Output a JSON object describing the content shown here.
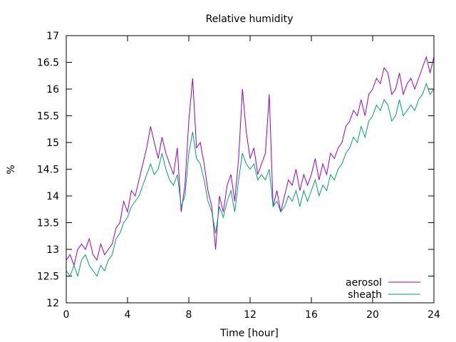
{
  "chart_data": {
    "type": "line",
    "title": "Relative humidity",
    "xlabel": "Time [hour]",
    "ylabel": "%",
    "xlim": [
      0,
      24
    ],
    "ylim": [
      12,
      17
    ],
    "xticks": [
      0,
      4,
      8,
      12,
      16,
      20,
      24
    ],
    "yticks": [
      12,
      12.5,
      13,
      13.5,
      14,
      14.5,
      15,
      15.5,
      16,
      16.5,
      17
    ],
    "grid": false,
    "legend_position": "bottom-right",
    "series": [
      {
        "name": "aerosol",
        "color": "#9400d3",
        "x": [
          0,
          0.25,
          0.5,
          0.75,
          1,
          1.25,
          1.5,
          1.75,
          2,
          2.25,
          2.5,
          2.75,
          3,
          3.25,
          3.5,
          3.75,
          4,
          4.25,
          4.5,
          4.75,
          5,
          5.25,
          5.5,
          5.75,
          6,
          6.25,
          6.5,
          6.75,
          7,
          7.25,
          7.5,
          7.75,
          8,
          8.25,
          8.5,
          8.75,
          9,
          9.25,
          9.5,
          9.75,
          10,
          10.25,
          10.5,
          10.75,
          11,
          11.25,
          11.5,
          11.75,
          12,
          12.25,
          12.5,
          12.75,
          13,
          13.25,
          13.5,
          13.75,
          14,
          14.25,
          14.5,
          14.75,
          15,
          15.25,
          15.5,
          15.75,
          16,
          16.25,
          16.5,
          16.75,
          17,
          17.25,
          17.5,
          17.75,
          18,
          18.25,
          18.5,
          18.75,
          19,
          19.25,
          19.5,
          19.75,
          20,
          20.25,
          20.5,
          20.75,
          21,
          21.25,
          21.5,
          21.75,
          22,
          22.25,
          22.5,
          22.75,
          23,
          23.25,
          23.5,
          23.75,
          24
        ],
        "y": [
          12.8,
          12.9,
          12.7,
          13.0,
          13.1,
          13.0,
          13.2,
          12.9,
          12.8,
          13.1,
          12.9,
          13.0,
          13.1,
          13.4,
          13.5,
          13.9,
          13.7,
          14.1,
          14.0,
          14.3,
          14.6,
          14.9,
          15.3,
          15.0,
          14.7,
          15.1,
          14.8,
          14.6,
          14.4,
          14.9,
          13.7,
          14.2,
          15.4,
          16.2,
          14.9,
          15.0,
          14.6,
          14.1,
          13.8,
          13.0,
          14.0,
          13.7,
          14.2,
          14.4,
          13.9,
          14.7,
          16.0,
          15.2,
          14.7,
          14.9,
          14.4,
          14.6,
          14.8,
          15.9,
          13.8,
          14.1,
          13.7,
          14.0,
          14.3,
          14.2,
          14.5,
          14.1,
          14.4,
          14.2,
          14.4,
          14.7,
          14.3,
          14.6,
          14.4,
          14.8,
          14.7,
          14.9,
          15.0,
          15.3,
          15.4,
          15.6,
          15.5,
          15.8,
          15.5,
          15.9,
          16.0,
          16.2,
          16.1,
          16.4,
          16.3,
          15.9,
          16.0,
          16.3,
          15.9,
          16.1,
          16.2,
          16.0,
          16.2,
          16.4,
          16.6,
          16.3,
          16.6
        ]
      },
      {
        "name": "sheath",
        "color": "#009e73",
        "x": [
          0,
          0.25,
          0.5,
          0.75,
          1,
          1.25,
          1.5,
          1.75,
          2,
          2.25,
          2.5,
          2.75,
          3,
          3.25,
          3.5,
          3.75,
          4,
          4.25,
          4.5,
          4.75,
          5,
          5.25,
          5.5,
          5.75,
          6,
          6.25,
          6.5,
          6.75,
          7,
          7.25,
          7.5,
          7.75,
          8,
          8.25,
          8.5,
          8.75,
          9,
          9.25,
          9.5,
          9.75,
          10,
          10.25,
          10.5,
          10.75,
          11,
          11.25,
          11.5,
          11.75,
          12,
          12.25,
          12.5,
          12.75,
          13,
          13.25,
          13.5,
          13.75,
          14,
          14.25,
          14.5,
          14.75,
          15,
          15.25,
          15.5,
          15.75,
          16,
          16.25,
          16.5,
          16.75,
          17,
          17.25,
          17.5,
          17.75,
          18,
          18.25,
          18.5,
          18.75,
          19,
          19.25,
          19.5,
          19.75,
          20,
          20.25,
          20.5,
          20.75,
          21,
          21.25,
          21.5,
          21.75,
          22,
          22.25,
          22.5,
          22.75,
          23,
          23.25,
          23.5,
          23.75,
          24
        ],
        "y": [
          12.6,
          12.5,
          12.7,
          12.5,
          12.8,
          12.9,
          12.7,
          12.6,
          12.5,
          12.7,
          12.6,
          12.8,
          12.9,
          13.2,
          13.3,
          13.5,
          13.6,
          13.8,
          13.9,
          14.0,
          14.2,
          14.4,
          14.6,
          14.4,
          14.5,
          14.8,
          14.5,
          14.3,
          14.2,
          14.4,
          13.8,
          14.0,
          14.8,
          15.2,
          14.7,
          14.6,
          14.3,
          13.9,
          13.7,
          13.3,
          13.8,
          13.6,
          13.9,
          14.1,
          13.7,
          14.3,
          14.8,
          14.6,
          14.5,
          14.6,
          14.3,
          14.4,
          14.3,
          14.5,
          13.8,
          13.9,
          13.7,
          13.8,
          14.0,
          13.9,
          14.1,
          13.8,
          14.1,
          13.9,
          14.1,
          14.3,
          14.0,
          14.2,
          14.1,
          14.4,
          14.3,
          14.5,
          14.6,
          14.8,
          14.9,
          15.1,
          15.0,
          15.3,
          15.1,
          15.4,
          15.5,
          15.7,
          15.6,
          15.8,
          15.7,
          15.4,
          15.5,
          15.8,
          15.5,
          15.6,
          15.7,
          15.6,
          15.8,
          15.9,
          16.1,
          15.9,
          16.0
        ]
      }
    ]
  }
}
